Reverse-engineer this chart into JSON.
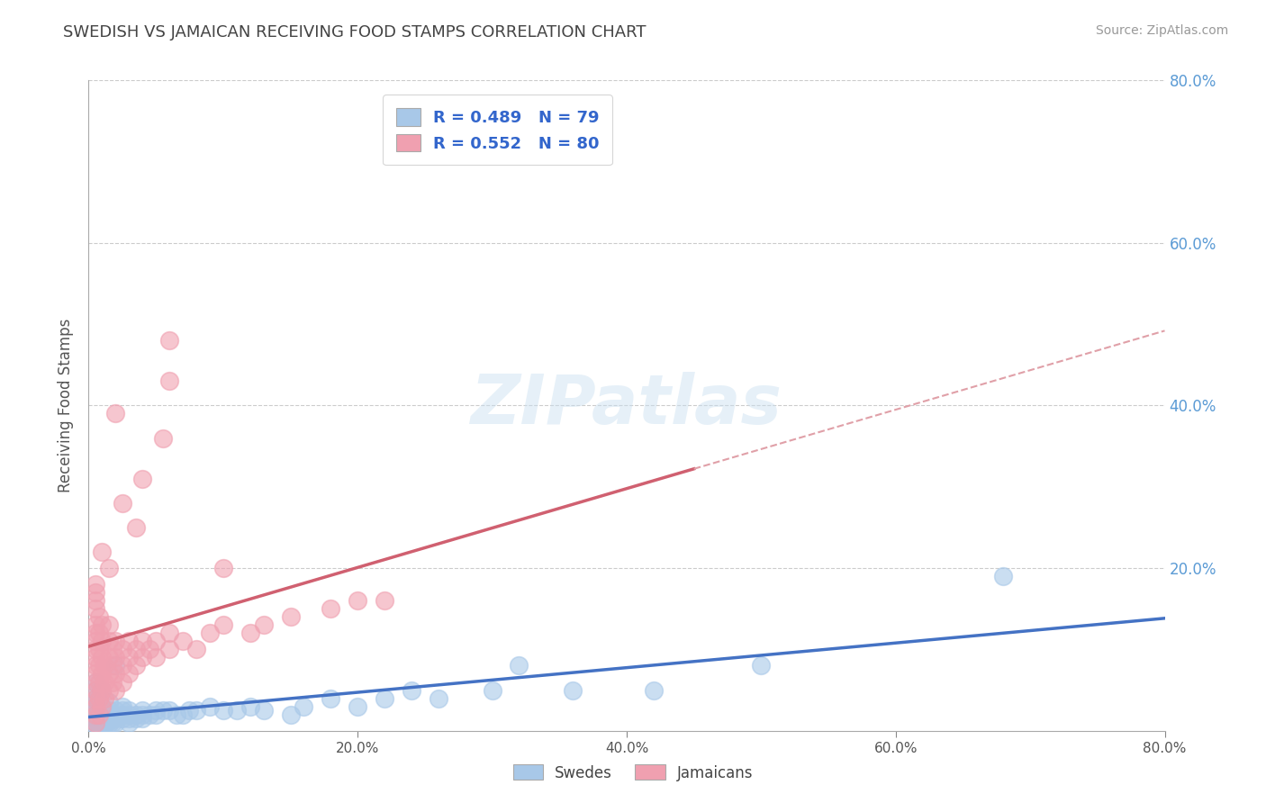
{
  "title": "SWEDISH VS JAMAICAN RECEIVING FOOD STAMPS CORRELATION CHART",
  "source_text": "Source: ZipAtlas.com",
  "ylabel": "Receiving Food Stamps",
  "xlim": [
    0.0,
    0.8
  ],
  "ylim": [
    0.0,
    0.8
  ],
  "xtick_labels": [
    "0.0%",
    "20.0%",
    "40.0%",
    "60.0%",
    "80.0%"
  ],
  "xtick_values": [
    0.0,
    0.2,
    0.4,
    0.6,
    0.8
  ],
  "ytick_labels": [
    "20.0%",
    "40.0%",
    "60.0%",
    "80.0%"
  ],
  "ytick_values": [
    0.2,
    0.4,
    0.6,
    0.8
  ],
  "swedish_color": "#a8c8e8",
  "jamaican_color": "#f0a0b0",
  "swedish_edge": "#4472c4",
  "jamaican_edge": "#d06070",
  "swedish_R": 0.489,
  "swedish_N": 79,
  "jamaican_R": 0.552,
  "jamaican_N": 80,
  "watermark": "ZIPatlas",
  "legend_labels": [
    "Swedes",
    "Jamaicans"
  ],
  "swedish_scatter": [
    [
      0.005,
      0.005
    ],
    [
      0.005,
      0.01
    ],
    [
      0.005,
      0.015
    ],
    [
      0.005,
      0.02
    ],
    [
      0.005,
      0.025
    ],
    [
      0.005,
      0.03
    ],
    [
      0.005,
      0.035
    ],
    [
      0.005,
      0.04
    ],
    [
      0.005,
      0.05
    ],
    [
      0.005,
      0.06
    ],
    [
      0.008,
      0.005
    ],
    [
      0.008,
      0.01
    ],
    [
      0.008,
      0.015
    ],
    [
      0.008,
      0.02
    ],
    [
      0.008,
      0.025
    ],
    [
      0.008,
      0.03
    ],
    [
      0.01,
      0.005
    ],
    [
      0.01,
      0.01
    ],
    [
      0.01,
      0.015
    ],
    [
      0.01,
      0.02
    ],
    [
      0.01,
      0.025
    ],
    [
      0.01,
      0.03
    ],
    [
      0.01,
      0.05
    ],
    [
      0.012,
      0.01
    ],
    [
      0.012,
      0.015
    ],
    [
      0.012,
      0.02
    ],
    [
      0.015,
      0.008
    ],
    [
      0.015,
      0.012
    ],
    [
      0.015,
      0.018
    ],
    [
      0.015,
      0.025
    ],
    [
      0.015,
      0.035
    ],
    [
      0.018,
      0.01
    ],
    [
      0.018,
      0.015
    ],
    [
      0.018,
      0.02
    ],
    [
      0.02,
      0.01
    ],
    [
      0.02,
      0.015
    ],
    [
      0.02,
      0.02
    ],
    [
      0.02,
      0.025
    ],
    [
      0.02,
      0.08
    ],
    [
      0.025,
      0.015
    ],
    [
      0.025,
      0.02
    ],
    [
      0.025,
      0.025
    ],
    [
      0.025,
      0.03
    ],
    [
      0.03,
      0.01
    ],
    [
      0.03,
      0.015
    ],
    [
      0.03,
      0.02
    ],
    [
      0.03,
      0.025
    ],
    [
      0.035,
      0.015
    ],
    [
      0.035,
      0.02
    ],
    [
      0.04,
      0.015
    ],
    [
      0.04,
      0.02
    ],
    [
      0.04,
      0.025
    ],
    [
      0.045,
      0.02
    ],
    [
      0.05,
      0.02
    ],
    [
      0.05,
      0.025
    ],
    [
      0.055,
      0.025
    ],
    [
      0.06,
      0.025
    ],
    [
      0.065,
      0.02
    ],
    [
      0.07,
      0.02
    ],
    [
      0.075,
      0.025
    ],
    [
      0.08,
      0.025
    ],
    [
      0.09,
      0.03
    ],
    [
      0.1,
      0.025
    ],
    [
      0.11,
      0.025
    ],
    [
      0.12,
      0.03
    ],
    [
      0.13,
      0.025
    ],
    [
      0.15,
      0.02
    ],
    [
      0.16,
      0.03
    ],
    [
      0.18,
      0.04
    ],
    [
      0.2,
      0.03
    ],
    [
      0.22,
      0.04
    ],
    [
      0.24,
      0.05
    ],
    [
      0.26,
      0.04
    ],
    [
      0.3,
      0.05
    ],
    [
      0.32,
      0.08
    ],
    [
      0.36,
      0.05
    ],
    [
      0.42,
      0.05
    ],
    [
      0.5,
      0.08
    ],
    [
      0.68,
      0.19
    ]
  ],
  "jamaican_scatter": [
    [
      0.005,
      0.01
    ],
    [
      0.005,
      0.02
    ],
    [
      0.005,
      0.03
    ],
    [
      0.005,
      0.04
    ],
    [
      0.005,
      0.05
    ],
    [
      0.005,
      0.06
    ],
    [
      0.005,
      0.07
    ],
    [
      0.005,
      0.08
    ],
    [
      0.005,
      0.09
    ],
    [
      0.005,
      0.1
    ],
    [
      0.005,
      0.11
    ],
    [
      0.005,
      0.12
    ],
    [
      0.005,
      0.13
    ],
    [
      0.005,
      0.15
    ],
    [
      0.005,
      0.16
    ],
    [
      0.005,
      0.17
    ],
    [
      0.005,
      0.18
    ],
    [
      0.008,
      0.02
    ],
    [
      0.008,
      0.04
    ],
    [
      0.008,
      0.06
    ],
    [
      0.008,
      0.08
    ],
    [
      0.008,
      0.1
    ],
    [
      0.008,
      0.12
    ],
    [
      0.008,
      0.14
    ],
    [
      0.01,
      0.03
    ],
    [
      0.01,
      0.05
    ],
    [
      0.01,
      0.07
    ],
    [
      0.01,
      0.09
    ],
    [
      0.01,
      0.11
    ],
    [
      0.01,
      0.13
    ],
    [
      0.012,
      0.04
    ],
    [
      0.012,
      0.06
    ],
    [
      0.012,
      0.08
    ],
    [
      0.015,
      0.05
    ],
    [
      0.015,
      0.07
    ],
    [
      0.015,
      0.09
    ],
    [
      0.015,
      0.11
    ],
    [
      0.015,
      0.13
    ],
    [
      0.018,
      0.06
    ],
    [
      0.018,
      0.08
    ],
    [
      0.018,
      0.1
    ],
    [
      0.02,
      0.05
    ],
    [
      0.02,
      0.07
    ],
    [
      0.02,
      0.09
    ],
    [
      0.02,
      0.11
    ],
    [
      0.025,
      0.06
    ],
    [
      0.025,
      0.08
    ],
    [
      0.025,
      0.1
    ],
    [
      0.03,
      0.07
    ],
    [
      0.03,
      0.09
    ],
    [
      0.03,
      0.11
    ],
    [
      0.035,
      0.08
    ],
    [
      0.035,
      0.1
    ],
    [
      0.04,
      0.09
    ],
    [
      0.04,
      0.11
    ],
    [
      0.045,
      0.1
    ],
    [
      0.05,
      0.09
    ],
    [
      0.05,
      0.11
    ],
    [
      0.06,
      0.1
    ],
    [
      0.06,
      0.12
    ],
    [
      0.07,
      0.11
    ],
    [
      0.08,
      0.1
    ],
    [
      0.09,
      0.12
    ],
    [
      0.1,
      0.13
    ],
    [
      0.12,
      0.12
    ],
    [
      0.13,
      0.13
    ],
    [
      0.15,
      0.14
    ],
    [
      0.18,
      0.15
    ],
    [
      0.2,
      0.16
    ],
    [
      0.22,
      0.16
    ],
    [
      0.06,
      0.48
    ],
    [
      0.1,
      0.2
    ],
    [
      0.06,
      0.43
    ],
    [
      0.055,
      0.36
    ],
    [
      0.02,
      0.39
    ],
    [
      0.04,
      0.31
    ],
    [
      0.025,
      0.28
    ],
    [
      0.035,
      0.25
    ],
    [
      0.01,
      0.22
    ],
    [
      0.015,
      0.2
    ]
  ]
}
